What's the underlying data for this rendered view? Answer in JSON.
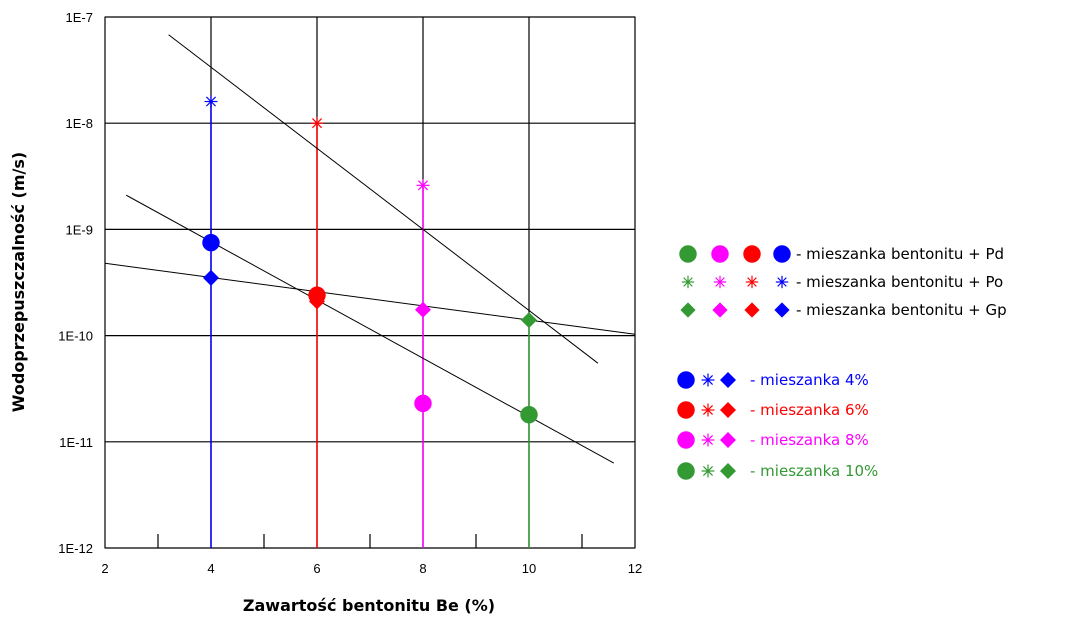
{
  "chart_data": {
    "type": "scatter",
    "xlabel": "Zawartość bentonitu Be (%)",
    "ylabel": "Wodoprzepuszczalność (m/s)",
    "xlim": [
      2,
      12
    ],
    "xticks": [
      "2",
      "4",
      "6",
      "8",
      "10",
      "12"
    ],
    "yscale": "log",
    "ylim": [
      1e-12,
      1e-07
    ],
    "yticks": [
      "1E-12",
      "1E-11",
      "1E-10",
      "1E-9",
      "1E-8",
      "1E-7"
    ],
    "grid": true,
    "legend_position": "right",
    "series": [
      {
        "marker": "circle",
        "points": [
          {
            "x": 4,
            "y": 7.5e-10,
            "color": "#0000ff"
          },
          {
            "x": 6,
            "y": 2.4e-10,
            "color": "#ff0000"
          },
          {
            "x": 8,
            "y": 2.3e-11,
            "color": "#ff00ff"
          },
          {
            "x": 10,
            "y": 1.8e-11,
            "color": "#339933"
          }
        ]
      },
      {
        "marker": "asterisk",
        "points": [
          {
            "x": 4,
            "y": 1.6e-08,
            "color": "#0000ff"
          },
          {
            "x": 6,
            "y": 1e-08,
            "color": "#ff0000"
          },
          {
            "x": 8,
            "y": 2.6e-09,
            "color": "#ff00ff"
          }
        ]
      },
      {
        "marker": "diamond",
        "points": [
          {
            "x": 4,
            "y": 3.5e-10,
            "color": "#0000ff"
          },
          {
            "x": 6,
            "y": 2.1e-10,
            "color": "#ff0000"
          },
          {
            "x": 8,
            "y": 1.75e-10,
            "color": "#ff00ff"
          },
          {
            "x": 10,
            "y": 1.4e-10,
            "color": "#339933"
          }
        ]
      }
    ],
    "trendlines": [
      {
        "from": [
          3.2,
          6.8e-08
        ],
        "to": [
          11.3,
          5.5e-11
        ]
      },
      {
        "from": [
          2.4,
          2.1e-09
        ],
        "to": [
          11.6,
          6.3e-12
        ]
      },
      {
        "from": [
          2.0,
          4.8e-10
        ],
        "to": [
          12.0,
          1.03e-10
        ]
      }
    ],
    "vertical_lines": [
      {
        "x": 4,
        "y_top": 1.6e-08,
        "color": "#0000ff"
      },
      {
        "x": 6,
        "y_top": 1e-08,
        "color": "#ff0000"
      },
      {
        "x": 8,
        "y_top": 2.6e-09,
        "color": "#ff00ff"
      },
      {
        "x": 10,
        "y_top": 1.4e-10,
        "color": "#339933"
      }
    ],
    "mixture_colors": {
      "4": "#0000ff",
      "6": "#ff0000",
      "8": "#ff00ff",
      "10": "#339933"
    }
  },
  "legend": {
    "material_entries": [
      {
        "label": "- mieszanka bentonitu + Pd",
        "marker": "circle"
      },
      {
        "label": "- mieszanka bentonitu + Po",
        "marker": "asterisk"
      },
      {
        "label": "- mieszanka bentonitu + Gp",
        "marker": "diamond"
      }
    ],
    "mixture_entries": [
      {
        "label": "- mieszanka 4%",
        "color": "#0000ff"
      },
      {
        "label": "- mieszanka 6%",
        "color": "#ff0000"
      },
      {
        "label": "- mieszanka 8%",
        "color": "#ff00ff"
      },
      {
        "label": "- mieszanka 10%",
        "color": "#339933"
      }
    ],
    "material_marker_colors": [
      "#339933",
      "#ff00ff",
      "#ff0000",
      "#0000ff"
    ]
  }
}
